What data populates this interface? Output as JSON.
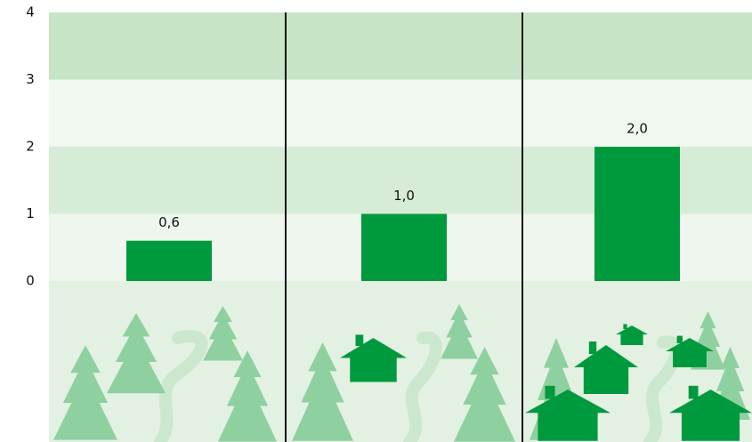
{
  "chart_data": {
    "type": "bar",
    "categories": [
      null,
      null,
      null
    ],
    "values": [
      0.6,
      1.0,
      2.0
    ],
    "value_labels": [
      "0,6",
      "1,0",
      "2,0"
    ],
    "color": "#009a3e",
    "ylim": [
      0,
      4
    ],
    "yticks": [
      0,
      1,
      2,
      3,
      4
    ]
  }
}
